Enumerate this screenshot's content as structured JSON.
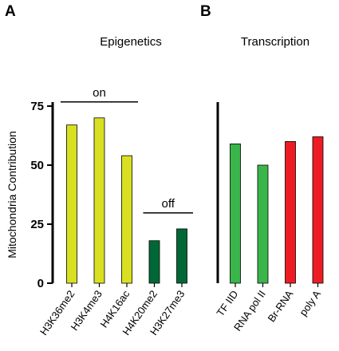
{
  "chart_data": [
    {
      "type": "bar",
      "panel": "A",
      "title": "Epigenetics",
      "ylabel": "Mitochondria Contribution",
      "ylim": [
        0,
        75
      ],
      "yticks": [
        "0",
        "25",
        "50",
        "75"
      ],
      "categories": [
        "H3K36me2",
        "H3K4me3",
        "H4K16ac",
        "H4K20me2",
        "H3K27me3"
      ],
      "values": [
        67,
        70,
        54,
        18,
        23
      ],
      "colors": [
        "#d9e021",
        "#d9e021",
        "#d9e021",
        "#006837",
        "#006837"
      ],
      "groups": [
        {
          "label": "on",
          "from": 0,
          "to": 2
        },
        {
          "label": "off",
          "from": 3,
          "to": 4
        }
      ]
    },
    {
      "type": "bar",
      "panel": "B",
      "title": "Transcription",
      "ylim": [
        0,
        75
      ],
      "categories": [
        "TF IID",
        "RNA pol II",
        "Br-RNA",
        "poly A"
      ],
      "values": [
        59,
        50,
        60,
        62
      ],
      "colors": [
        "#39b54a",
        "#39b54a",
        "#ed1c24",
        "#ed1c24"
      ]
    }
  ]
}
